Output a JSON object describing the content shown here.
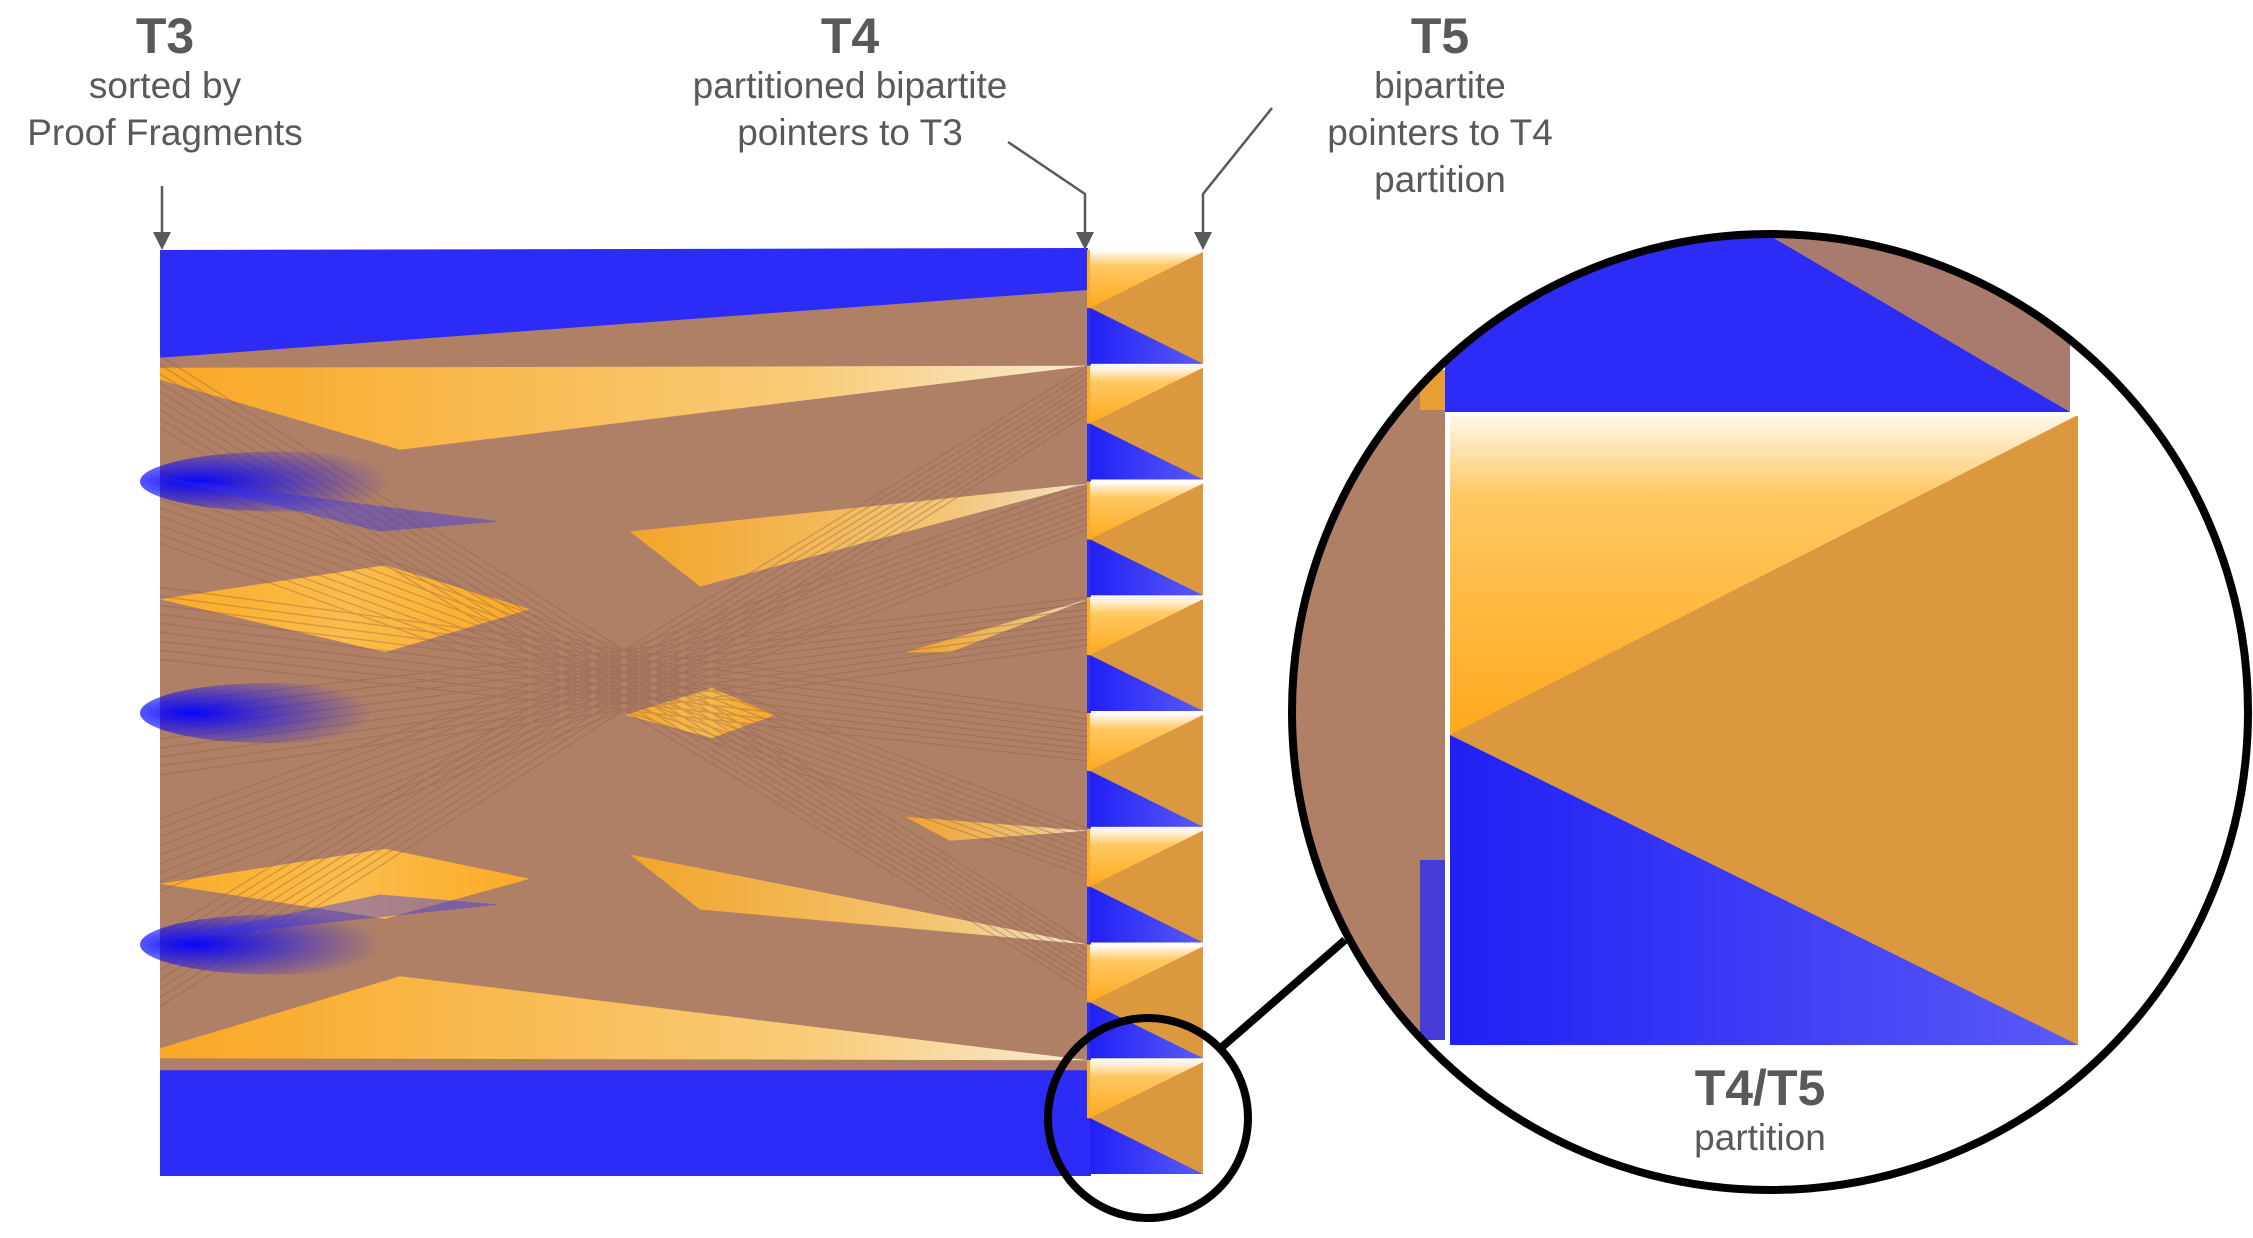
{
  "colors": {
    "blue": "#2c2cf6",
    "orange": "#ffab1f",
    "blend": "#b08066",
    "label": "#595959",
    "callout": "#000000"
  },
  "labels": {
    "t3": {
      "title": "T3",
      "lines": [
        "sorted by",
        "Proof Fragments"
      ]
    },
    "t4": {
      "title": "T4",
      "lines": [
        "partitioned bipartite",
        "pointers to T3"
      ]
    },
    "t5": {
      "title": "T5",
      "lines": [
        "bipartite",
        "pointers to T4",
        "partition"
      ]
    },
    "zoom": {
      "title": "T4/T5",
      "lines": [
        "partition"
      ]
    }
  },
  "structure": {
    "t4_partitions": 8,
    "t5_partitions": 8
  }
}
